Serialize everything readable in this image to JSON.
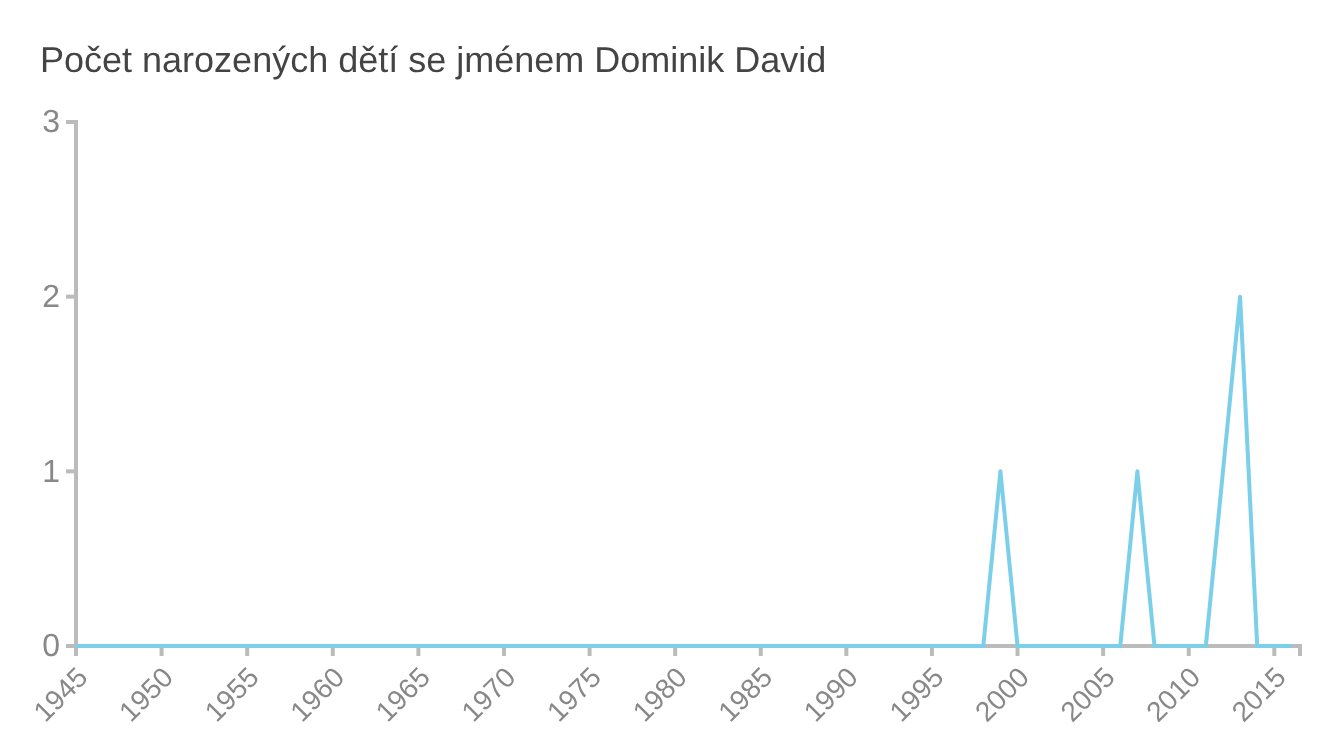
{
  "chart_data": {
    "type": "line",
    "title": "Počet narozených dětí se jménem Dominik David",
    "x": [
      1945,
      1998,
      1999,
      2000,
      2006,
      2007,
      2008,
      2011,
      2012,
      2013,
      2014,
      2016
    ],
    "series": [
      {
        "color": "#7ccfe9",
        "values": [
          0,
          0,
          1,
          0,
          0,
          1,
          0,
          0,
          1,
          2,
          0,
          0
        ]
      }
    ],
    "xlim": [
      1945,
      2016.5
    ],
    "xticks": [
      1945,
      1950,
      1955,
      1960,
      1965,
      1970,
      1975,
      1980,
      1985,
      1990,
      1995,
      2000,
      2005,
      2010,
      2015
    ],
    "ylim": [
      0,
      3
    ],
    "yticks": [
      0,
      1,
      2,
      3
    ],
    "grid": false,
    "marker": "none",
    "line_style": "solid"
  }
}
